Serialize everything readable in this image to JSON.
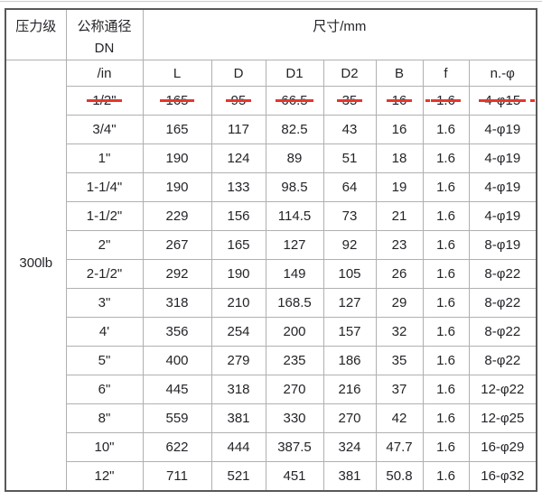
{
  "table": {
    "header": {
      "pressure_class_label": "压力级",
      "nominal_diameter_label": "公称通径",
      "nominal_diameter_sub": "DN",
      "size_label": "尺寸/mm",
      "unit_row": [
        "/in",
        "L",
        "D",
        "D1",
        "D2",
        "B",
        "f",
        "n.-φ"
      ]
    },
    "pressure_class": "300lb",
    "rows": [
      {
        "struck": true,
        "cells": [
          "1/2\"",
          "165",
          "95",
          "66.5",
          "35",
          "16",
          "1.6",
          "4-φ15"
        ]
      },
      {
        "struck": false,
        "cells": [
          "3/4\"",
          "165",
          "117",
          "82.5",
          "43",
          "16",
          "1.6",
          "4-φ19"
        ]
      },
      {
        "struck": false,
        "cells": [
          "1\"",
          "190",
          "124",
          "89",
          "51",
          "18",
          "1.6",
          "4-φ19"
        ]
      },
      {
        "struck": false,
        "cells": [
          "1-1/4\"",
          "190",
          "133",
          "98.5",
          "64",
          "19",
          "1.6",
          "4-φ19"
        ]
      },
      {
        "struck": false,
        "cells": [
          "1-1/2\"",
          "229",
          "156",
          "114.5",
          "73",
          "21",
          "1.6",
          "4-φ19"
        ]
      },
      {
        "struck": false,
        "cells": [
          "2\"",
          "267",
          "165",
          "127",
          "92",
          "23",
          "1.6",
          "8-φ19"
        ]
      },
      {
        "struck": false,
        "cells": [
          "2-1/2\"",
          "292",
          "190",
          "149",
          "105",
          "26",
          "1.6",
          "8-φ22"
        ]
      },
      {
        "struck": false,
        "cells": [
          "3\"",
          "318",
          "210",
          "168.5",
          "127",
          "29",
          "1.6",
          "8-φ22"
        ]
      },
      {
        "struck": false,
        "cells": [
          "4'",
          "356",
          "254",
          "200",
          "157",
          "32",
          "1.6",
          "8-φ22"
        ]
      },
      {
        "struck": false,
        "cells": [
          "5\"",
          "400",
          "279",
          "235",
          "186",
          "35",
          "1.6",
          "8-φ22"
        ]
      },
      {
        "struck": false,
        "cells": [
          "6\"",
          "445",
          "318",
          "270",
          "216",
          "37",
          "1.6",
          "12-φ22"
        ]
      },
      {
        "struck": false,
        "cells": [
          "8\"",
          "559",
          "381",
          "330",
          "270",
          "42",
          "1.6",
          "12-φ25"
        ]
      },
      {
        "struck": false,
        "cells": [
          "10\"",
          "622",
          "444",
          "387.5",
          "324",
          "47.7",
          "1.6",
          "16-φ29"
        ]
      },
      {
        "struck": false,
        "cells": [
          "12\"",
          "711",
          "521",
          "451",
          "381",
          "50.8",
          "1.6",
          "16-φ32"
        ]
      }
    ]
  },
  "colors": {
    "strike": "#e8352a",
    "grid": "#b0b0b0",
    "outer_border": "#595959",
    "text": "#24242a"
  }
}
